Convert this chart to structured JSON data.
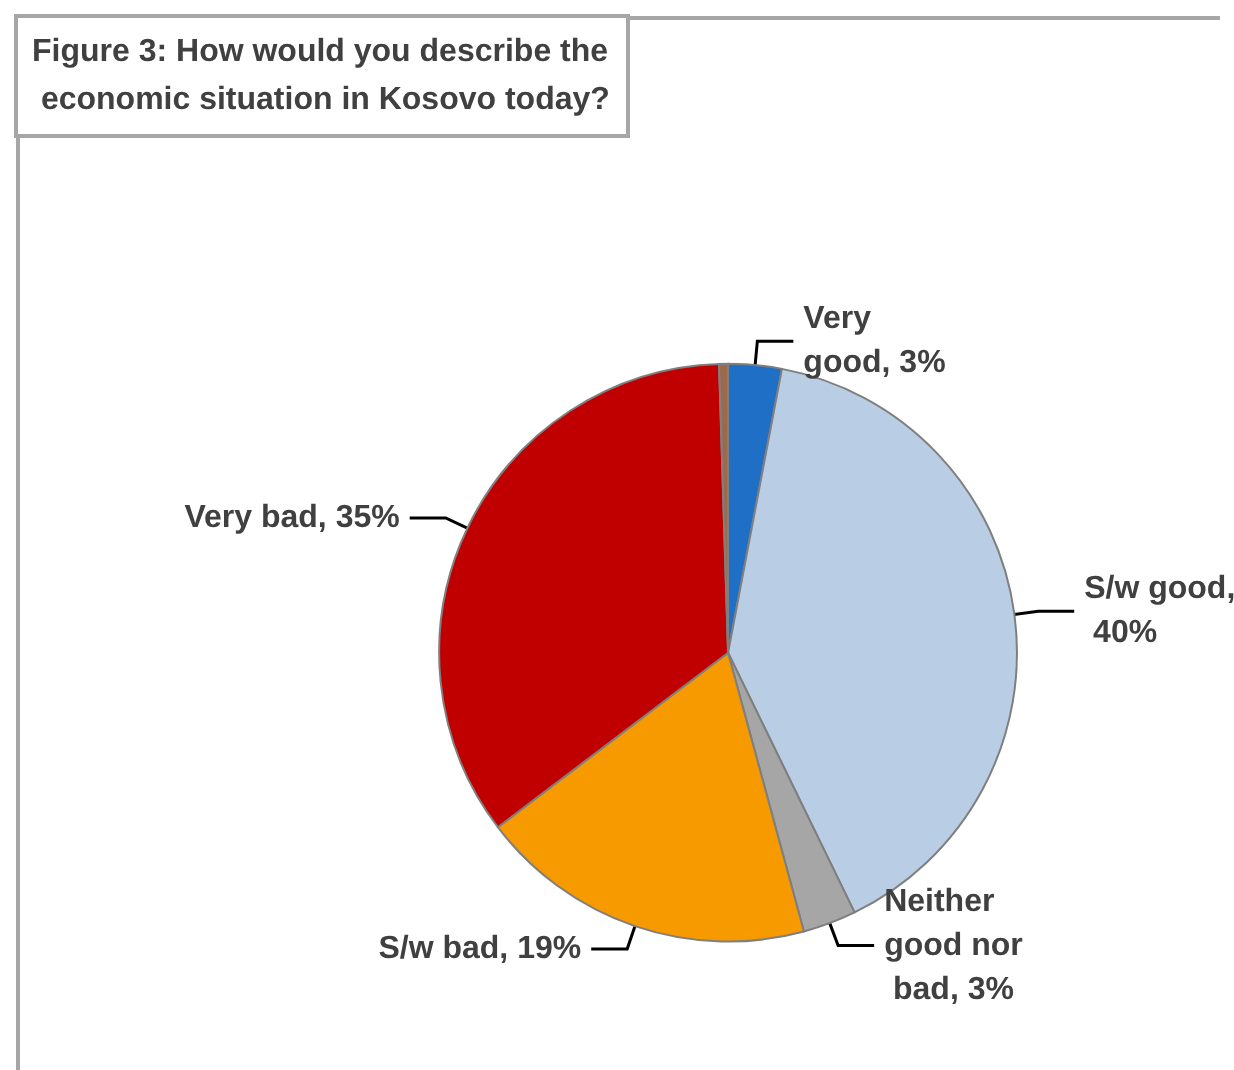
{
  "chart_data": {
    "type": "pie",
    "title": "Figure 3: How would you describe the economic situation in Kosovo today?",
    "categories": [
      "Very good",
      "S/w good",
      "Neither good nor bad",
      "S/w bad",
      "Very bad",
      null
    ],
    "values": [
      3,
      40,
      3,
      19,
      35,
      0.5
    ],
    "colors": [
      "#1f6fc6",
      "#b9cde5",
      "#a6a6a6",
      "#f79a00",
      "#c00000",
      "#9c6a4a"
    ],
    "value_labels": [
      ", 3%",
      ", 40%",
      ", 3%",
      ", 19%",
      ", 35%",
      null
    ],
    "legend": false
  }
}
